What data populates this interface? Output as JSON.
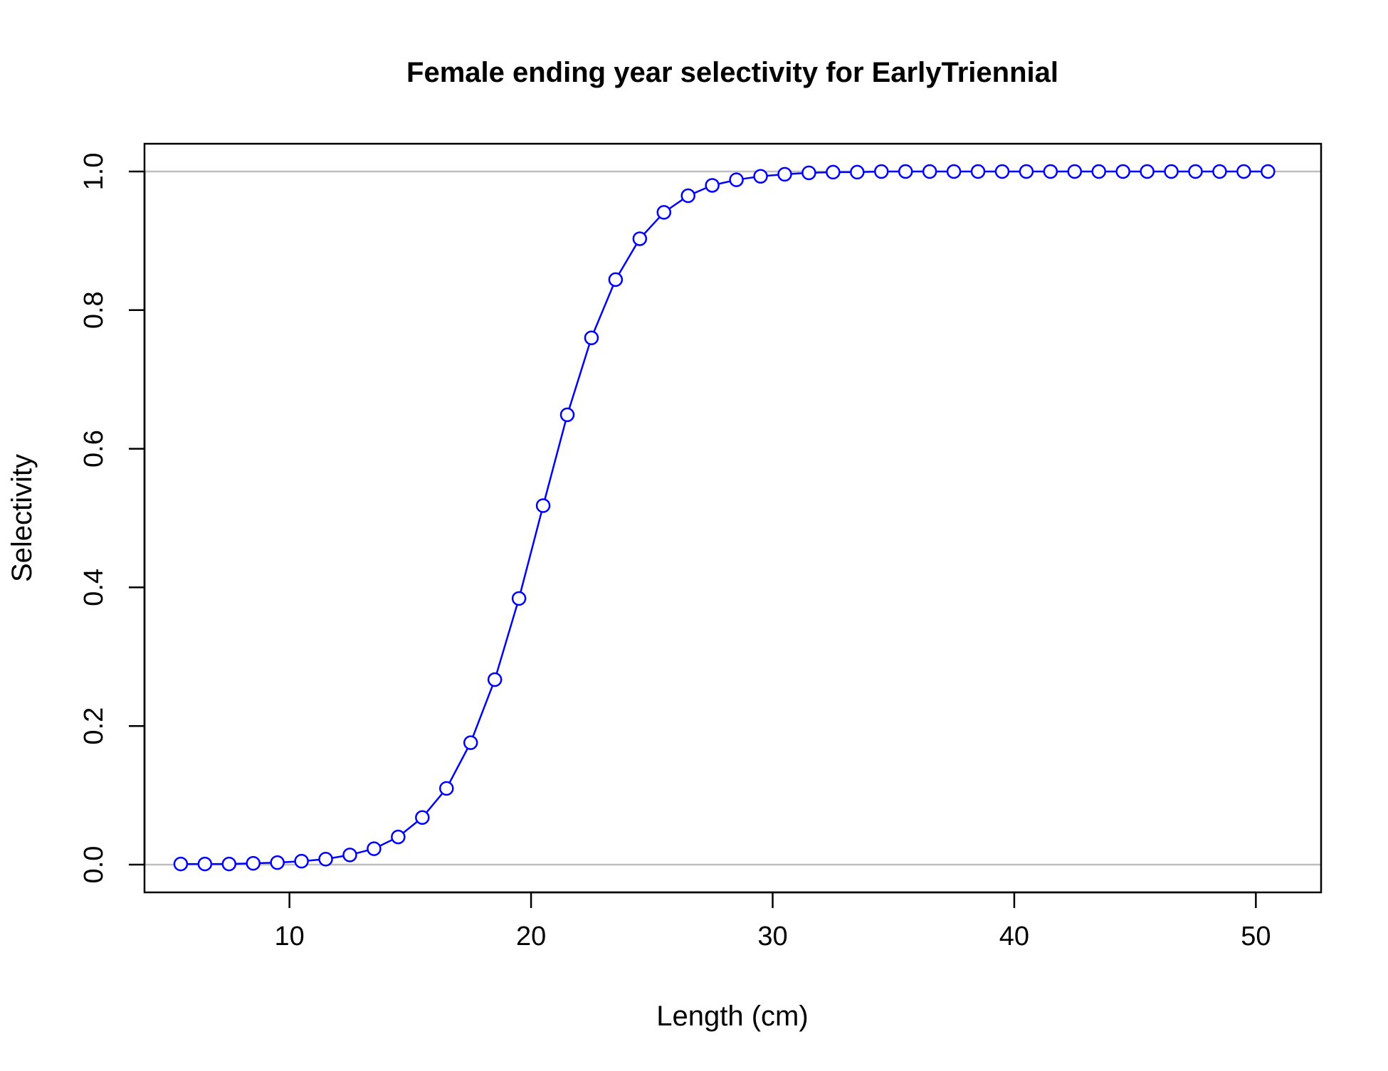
{
  "chart_data": {
    "type": "line",
    "title": "Female ending year selectivity for EarlyTriennial",
    "xlabel": "Length (cm)",
    "ylabel": "Selectivity",
    "xlim": [
      4,
      52.7
    ],
    "ylim": [
      -0.04,
      1.04
    ],
    "x_ticks": [
      10,
      20,
      30,
      40,
      50
    ],
    "x_tick_labels": [
      "10",
      "20",
      "30",
      "40",
      "50"
    ],
    "y_ticks": [
      0.0,
      0.2,
      0.4,
      0.6,
      0.8,
      1.0
    ],
    "y_tick_labels": [
      "0.0",
      "0.2",
      "0.4",
      "0.6",
      "0.8",
      "1.0"
    ],
    "reference_lines": [
      0,
      1
    ],
    "reference_line_color": "#bebebe",
    "series_color": "#0000ff",
    "marker": "open-circle",
    "series": [
      {
        "x": [
          5.5,
          6.5,
          7.5,
          8.5,
          9.5,
          10.5,
          11.5,
          12.5,
          13.5,
          14.5,
          15.5,
          16.5,
          17.5,
          18.5,
          19.5,
          20.5,
          21.5,
          22.5,
          23.5,
          24.5,
          25.5,
          26.5,
          27.5,
          28.5,
          29.5,
          30.5,
          31.5,
          32.5,
          33.5,
          34.5,
          35.5,
          36.5,
          37.5,
          38.5,
          39.5,
          40.5,
          41.5,
          42.5,
          43.5,
          44.5,
          45.5,
          46.5,
          47.5,
          48.5,
          49.5,
          50.5
        ],
        "y": [
          0.001,
          0.001,
          0.001,
          0.002,
          0.003,
          0.005,
          0.008,
          0.014,
          0.023,
          0.04,
          0.068,
          0.11,
          0.176,
          0.267,
          0.384,
          0.518,
          0.649,
          0.76,
          0.844,
          0.903,
          0.941,
          0.965,
          0.98,
          0.988,
          0.993,
          0.996,
          0.998,
          0.999,
          0.999,
          1.0,
          1.0,
          1.0,
          1.0,
          1.0,
          1.0,
          1.0,
          1.0,
          1.0,
          1.0,
          1.0,
          1.0,
          1.0,
          1.0,
          1.0,
          1.0,
          1.0
        ]
      }
    ]
  }
}
